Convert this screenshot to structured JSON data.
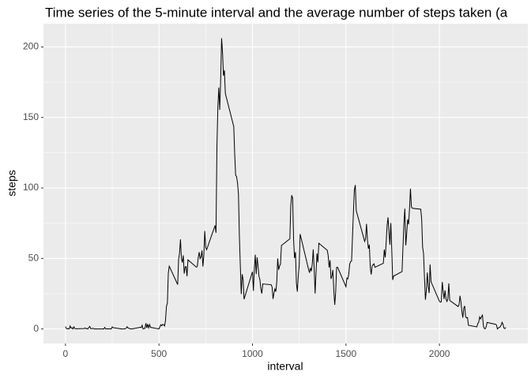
{
  "chart_data": {
    "type": "line",
    "title": "Time series of the 5-minute interval and the average number of steps taken (a",
    "x_label": "interval",
    "y_label": "steps",
    "color": "#000000",
    "grid": true,
    "xlim": [
      -117.75,
      2472.75
    ],
    "xticks": [
      0,
      500,
      1000,
      1500,
      2000
    ],
    "ylim": [
      -10.3,
      216.5
    ],
    "yticks": [
      0,
      50,
      100,
      150,
      200
    ],
    "x": [
      0,
      5,
      10,
      15,
      20,
      25,
      30,
      35,
      40,
      45,
      50,
      55,
      100,
      105,
      110,
      115,
      120,
      125,
      130,
      135,
      140,
      145,
      150,
      155,
      200,
      205,
      210,
      215,
      220,
      225,
      230,
      235,
      240,
      245,
      250,
      255,
      300,
      305,
      310,
      315,
      320,
      325,
      330,
      335,
      340,
      345,
      350,
      355,
      400,
      405,
      410,
      415,
      420,
      425,
      430,
      435,
      440,
      445,
      450,
      455,
      500,
      505,
      510,
      515,
      520,
      525,
      530,
      535,
      540,
      545,
      550,
      555,
      600,
      605,
      610,
      615,
      620,
      625,
      630,
      635,
      640,
      645,
      650,
      655,
      700,
      705,
      710,
      715,
      720,
      725,
      730,
      735,
      740,
      745,
      750,
      755,
      800,
      805,
      810,
      815,
      820,
      825,
      830,
      835,
      840,
      845,
      850,
      855,
      900,
      905,
      910,
      915,
      920,
      925,
      930,
      935,
      940,
      945,
      950,
      955,
      1000,
      1005,
      1010,
      1015,
      1020,
      1025,
      1030,
      1035,
      1040,
      1045,
      1050,
      1055,
      1100,
      1105,
      1110,
      1115,
      1120,
      1125,
      1130,
      1135,
      1140,
      1145,
      1150,
      1155,
      1200,
      1205,
      1210,
      1215,
      1220,
      1225,
      1230,
      1235,
      1240,
      1245,
      1250,
      1255,
      1300,
      1305,
      1310,
      1315,
      1320,
      1325,
      1330,
      1335,
      1340,
      1345,
      1350,
      1355,
      1400,
      1405,
      1410,
      1415,
      1420,
      1425,
      1430,
      1435,
      1440,
      1445,
      1450,
      1455,
      1500,
      1505,
      1510,
      1515,
      1520,
      1525,
      1530,
      1535,
      1540,
      1545,
      1550,
      1555,
      1600,
      1605,
      1610,
      1615,
      1620,
      1625,
      1630,
      1635,
      1640,
      1645,
      1650,
      1655,
      1700,
      1705,
      1710,
      1715,
      1720,
      1725,
      1730,
      1735,
      1740,
      1745,
      1750,
      1755,
      1800,
      1805,
      1810,
      1815,
      1820,
      1825,
      1830,
      1835,
      1840,
      1845,
      1850,
      1855,
      1900,
      1905,
      1910,
      1915,
      1920,
      1925,
      1930,
      1935,
      1940,
      1945,
      1950,
      1955,
      2000,
      2005,
      2010,
      2015,
      2020,
      2025,
      2030,
      2035,
      2040,
      2045,
      2050,
      2055,
      2100,
      2105,
      2110,
      2115,
      2120,
      2125,
      2130,
      2135,
      2140,
      2145,
      2150,
      2155,
      2200,
      2205,
      2210,
      2215,
      2220,
      2225,
      2230,
      2235,
      2240,
      2245,
      2250,
      2255,
      2300,
      2305,
      2310,
      2315,
      2320,
      2325,
      2330,
      2335,
      2340,
      2345,
      2350,
      2355
    ],
    "values": [
      1.7,
      0.3,
      0.1,
      0.2,
      0.1,
      2.1,
      0.5,
      0.9,
      0,
      1.5,
      0.3,
      0.1,
      0.3,
      0.7,
      0.2,
      0.3,
      0,
      1.1,
      1.8,
      0.2,
      0.2,
      0.4,
      0.3,
      0,
      0,
      0,
      1.1,
      0,
      0,
      0.1,
      0,
      0.2,
      0,
      0,
      1.5,
      0.9,
      0,
      0,
      0,
      0,
      0.2,
      0.6,
      1.6,
      0.6,
      0.5,
      0.1,
      0,
      0,
      1.2,
      0.9,
      2.6,
      0,
      0.3,
      0.4,
      4.1,
      0.7,
      3.5,
      0.8,
      3.1,
      1.1,
      0,
      1.6,
      3,
      2.2,
      3.3,
      3,
      2.1,
      6.1,
      16,
      18.3,
      39.5,
      44.5,
      31.5,
      49.3,
      53.8,
      63.5,
      50,
      47.1,
      52.2,
      39.3,
      44,
      44.2,
      37.4,
      49,
      43.8,
      44.4,
      50.5,
      54.5,
      49.9,
      51,
      55.7,
      44.3,
      52.3,
      69.5,
      57.8,
      56.2,
      73.4,
      68.2,
      129.4,
      157.5,
      171.2,
      155.4,
      177.3,
      206.2,
      195.9,
      179.6,
      183.4,
      167,
      143.5,
      124,
      109.1,
      108.1,
      103.7,
      95.9,
      66.2,
      45.2,
      24.8,
      38.8,
      34.98,
      21.1,
      40.6,
      27,
      42.4,
      52.7,
      38.9,
      50.8,
      44.3,
      37.4,
      34.7,
      28.3,
      25.1,
      31.9,
      31.4,
      29.7,
      21.3,
      25.5,
      28.4,
      26.5,
      33.4,
      50,
      42,
      44.6,
      46,
      59.2,
      63.9,
      87.7,
      94.8,
      92.8,
      63.4,
      50.2,
      54.5,
      32.4,
      26.5,
      37.7,
      45.1,
      67.3,
      42.3,
      39.9,
      43.3,
      40.98,
      46.2,
      56.4,
      42.8,
      25.1,
      39.97,
      53.5,
      47.3,
      60.8,
      55.8,
      51.96,
      43.6,
      48.7,
      35.5,
      37.5,
      41.8,
      27.5,
      17.1,
      26.1,
      43.6,
      43.8,
      30,
      36.1,
      35.5,
      38.8,
      45.96,
      47.8,
      48.1,
      65.3,
      82.9,
      98.7,
      102.1,
      83.96,
      62.1,
      64.1,
      74.5,
      63.2,
      56.9,
      59.8,
      43.9,
      38.6,
      44.7,
      45.5,
      46.2,
      43.7,
      46.6,
      56.3,
      50.7,
      61.2,
      73.4,
      79.1,
      68.9,
      59.7,
      75.1,
      56.5,
      34.8,
      37.5,
      40.7,
      58,
      74.7,
      85.3,
      59.3,
      67.8,
      77.7,
      74.2,
      85.3,
      99.5,
      86.6,
      85.6,
      84.9,
      77.8,
      58,
      53.4,
      36.3,
      20.7,
      27.4,
      40,
      30.2,
      25.5,
      45.7,
      33.5,
      19.6,
      19,
      19.3,
      33.3,
      26.8,
      21.2,
      27.3,
      21.3,
      19.5,
      21.3,
      32.3,
      20.2,
      15.9,
      17.2,
      23.5,
      19.2,
      12.5,
      8,
      14.7,
      16.3,
      8.7,
      7.8,
      8.1,
      2.6,
      1.5,
      3.7,
      4.8,
      8.5,
      7.1,
      8.7,
      9.8,
      2.2,
      0.3,
      0.1,
      1.6,
      4.6,
      3.3,
      2.8,
      0,
      0.8,
      0.96,
      1.6,
      2.6,
      4.7,
      3.3,
      0.6,
      0.2,
      1.1
    ]
  }
}
